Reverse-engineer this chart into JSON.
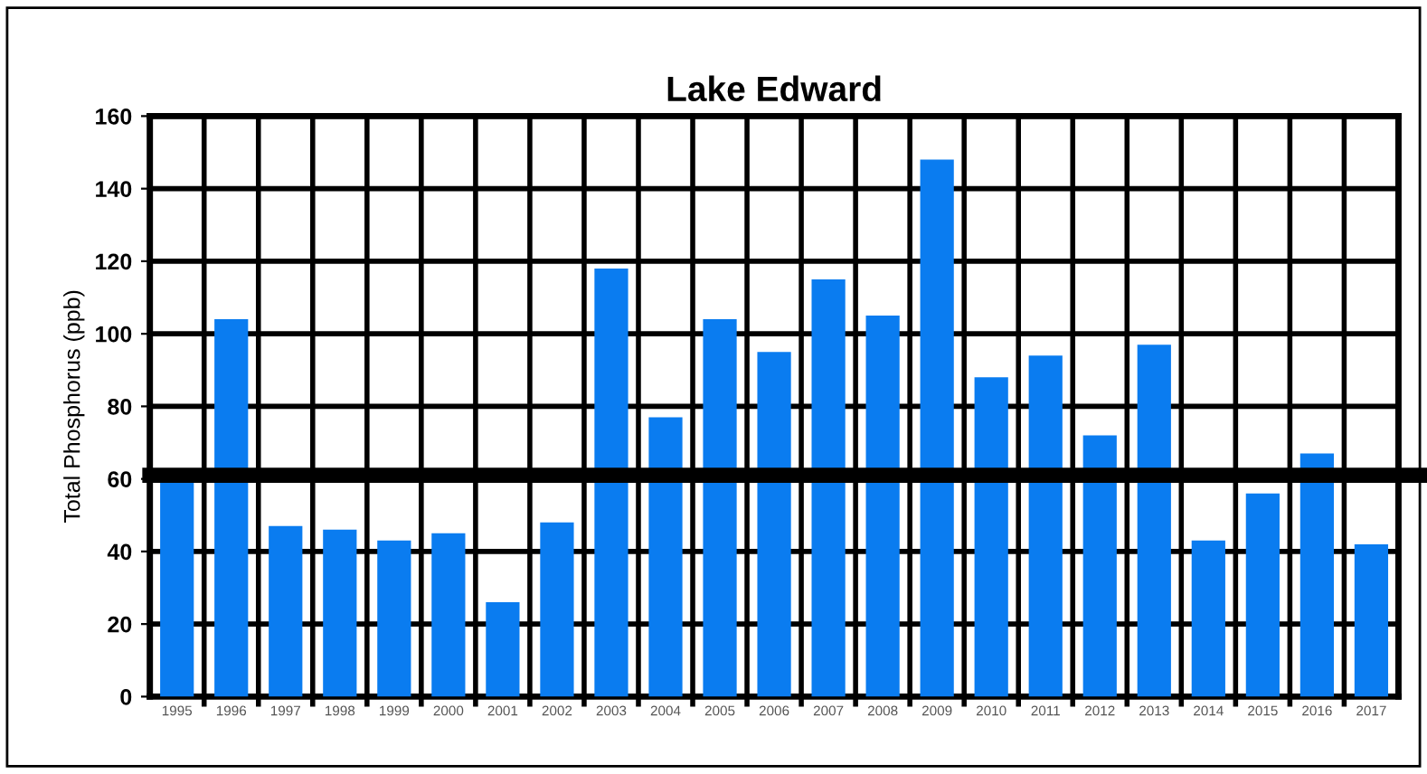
{
  "chart_data": {
    "type": "bar",
    "title": "Lake Edward",
    "ylabel": "Total Phosphorus (ppb)",
    "categories": [
      "1995",
      "1996",
      "1997",
      "1998",
      "1999",
      "2000",
      "2001",
      "2002",
      "2003",
      "2004",
      "2005",
      "2006",
      "2007",
      "2008",
      "2009",
      "2010",
      "2011",
      "2012",
      "2013",
      "2014",
      "2015",
      "2016",
      "2017"
    ],
    "values": [
      60,
      104,
      47,
      46,
      43,
      45,
      26,
      48,
      118,
      77,
      104,
      95,
      115,
      105,
      148,
      88,
      94,
      72,
      97,
      43,
      56,
      67,
      42
    ],
    "color": "#0a7cf0",
    "ylim": [
      0,
      160
    ],
    "yticks": [
      0,
      20,
      40,
      60,
      80,
      100,
      120,
      140,
      160
    ],
    "grid": true,
    "ref_lines": [
      {
        "axis": "y",
        "value": 61,
        "color": "#000000"
      }
    ]
  }
}
